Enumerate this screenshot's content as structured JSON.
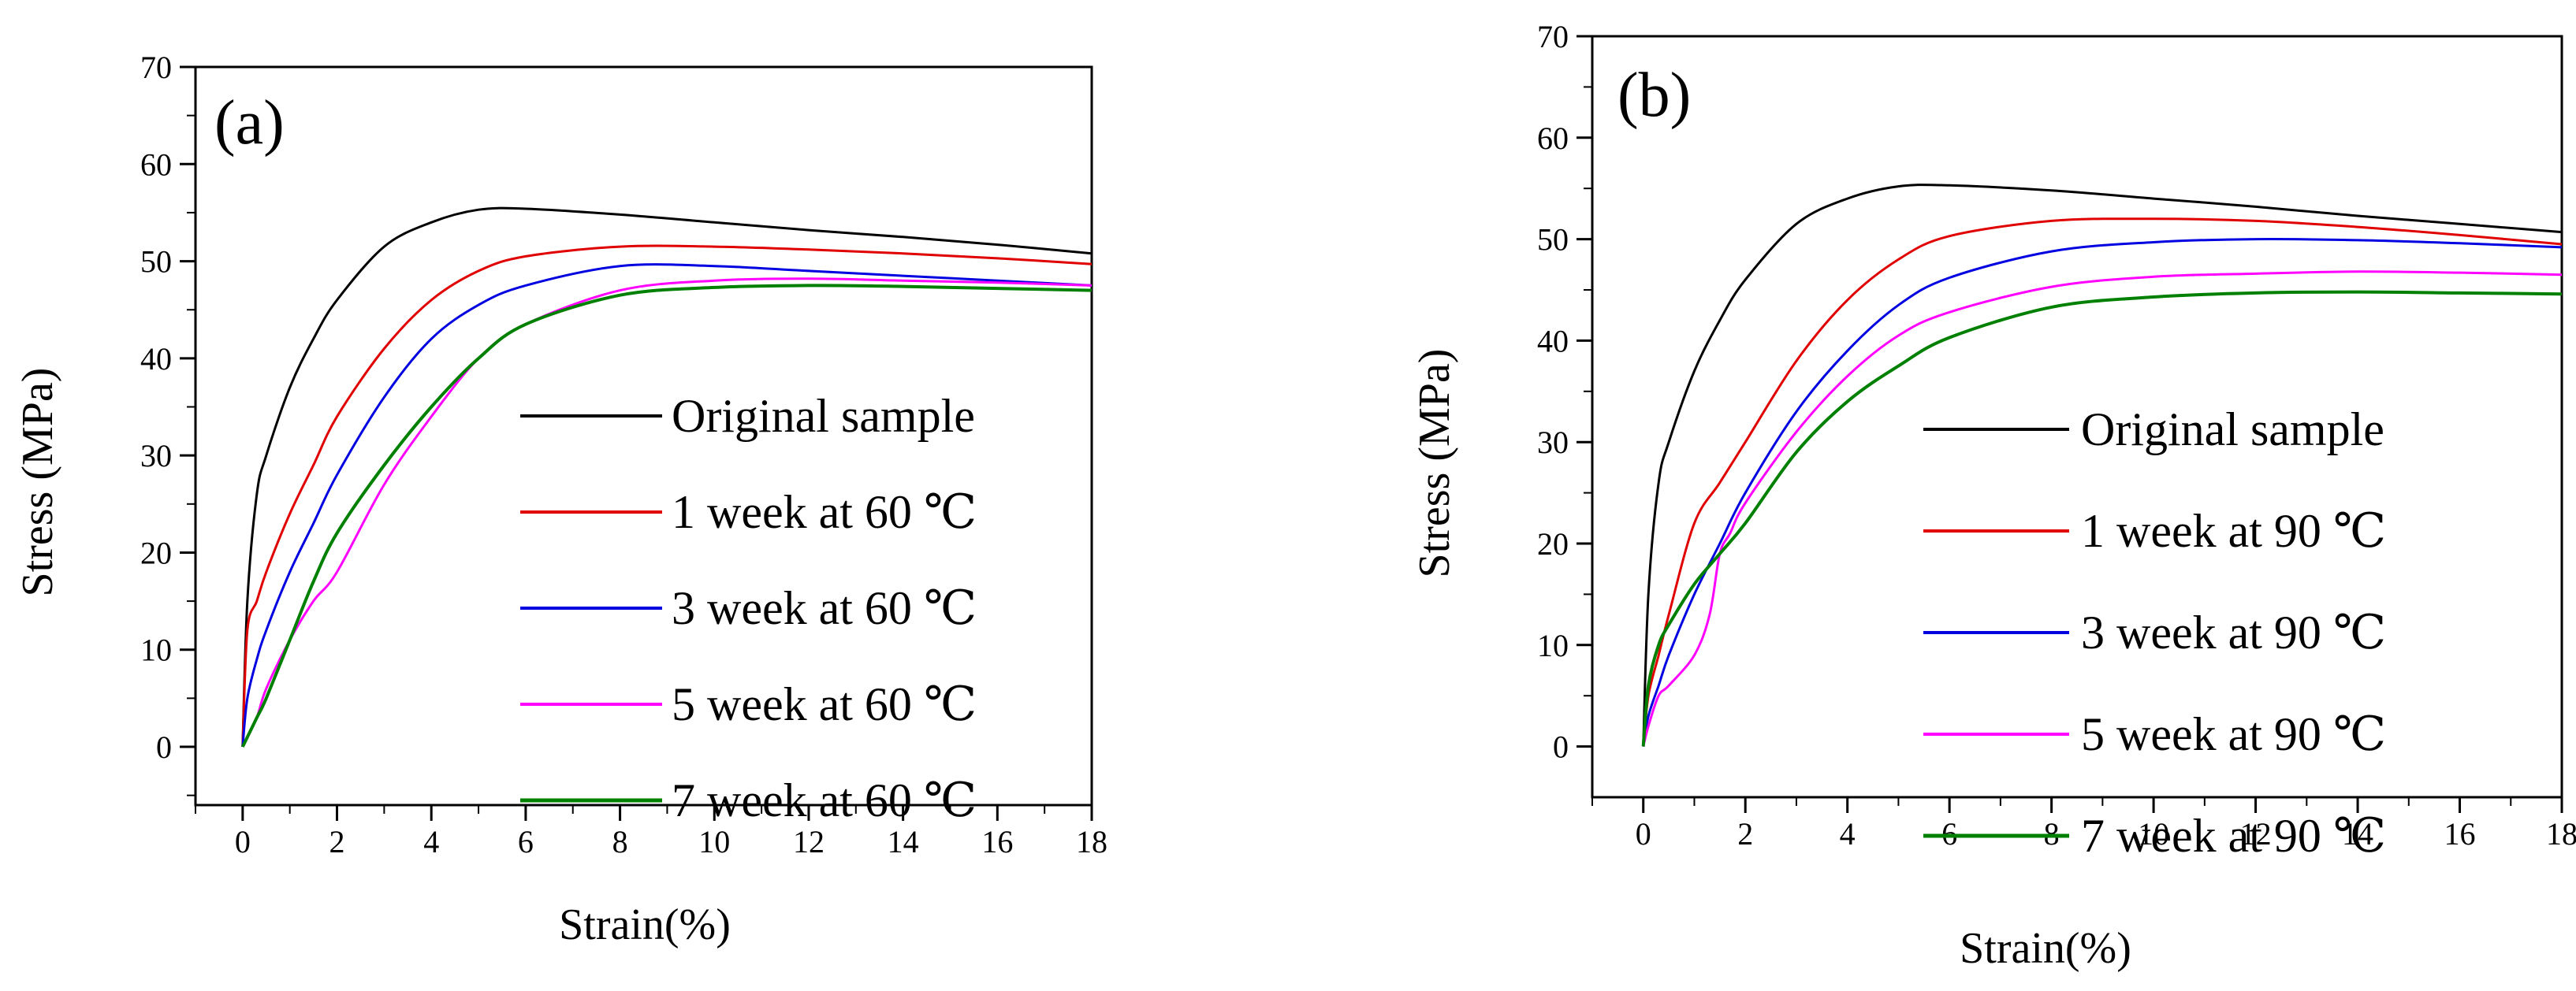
{
  "chart_data": [
    {
      "type": "line",
      "panel_label": "(a)",
      "xlabel": "Strain(%)",
      "ylabel": "Stress (MPa)",
      "xlim": [
        -1,
        18
      ],
      "ylim": [
        -6,
        70
      ],
      "xticks": [
        "0",
        "2",
        "4",
        "6",
        "8",
        "10",
        "12",
        "14",
        "16",
        "18"
      ],
      "yticks": [
        "0",
        "10",
        "20",
        "30",
        "40",
        "50",
        "60",
        "70"
      ],
      "legend_position": "center-right",
      "series": [
        {
          "name": "Original sample",
          "color": "#000000",
          "x": [
            0,
            0.1,
            0.3,
            0.5,
            1,
            1.5,
            2,
            3,
            4,
            5,
            6,
            8,
            10,
            12,
            14,
            16,
            18
          ],
          "y": [
            0,
            15,
            26,
            30,
            37,
            42,
            46,
            51.5,
            54,
            55.3,
            55.4,
            54.8,
            54,
            53.2,
            52.5,
            51.7,
            50.8
          ]
        },
        {
          "name": "1 week at 60 ℃",
          "color": "#e00000",
          "x": [
            0,
            0.1,
            0.3,
            0.5,
            1,
            1.5,
            2,
            3,
            4,
            5,
            6,
            8,
            10,
            12,
            14,
            16,
            18
          ],
          "y": [
            0,
            12,
            15,
            18,
            24,
            29,
            34,
            41,
            46,
            49,
            50.5,
            51.5,
            51.5,
            51.2,
            50.8,
            50.3,
            49.7
          ]
        },
        {
          "name": "3 week at 60 ℃",
          "color": "#0000e0",
          "x": [
            0,
            0.1,
            0.3,
            0.5,
            1,
            1.5,
            2,
            3,
            4,
            5,
            6,
            8,
            10,
            12,
            14,
            16,
            18
          ],
          "y": [
            0,
            5,
            9,
            12,
            18,
            23,
            28,
            36,
            42,
            45.5,
            47.5,
            49.5,
            49.5,
            49,
            48.5,
            48,
            47.5
          ]
        },
        {
          "name": "5 week at 60 ℃",
          "color": "#ff00ff",
          "x": [
            0,
            0.1,
            0.3,
            0.5,
            1,
            1.5,
            2,
            3,
            4,
            5,
            6,
            8,
            10,
            12,
            14,
            16,
            18
          ],
          "y": [
            0,
            1,
            3,
            6,
            11,
            15,
            18,
            27,
            34,
            40,
            43.5,
            47,
            48,
            48.2,
            48,
            47.8,
            47.5
          ]
        },
        {
          "name": "7 week at 60 ℃",
          "color": "#008000",
          "x": [
            0,
            0.1,
            0.3,
            0.5,
            1,
            1.5,
            2,
            3,
            4,
            5,
            6,
            8,
            10,
            12,
            14,
            16,
            18
          ],
          "y": [
            0,
            1,
            3,
            5,
            11,
            17,
            22,
            29,
            35,
            40,
            43.5,
            46.5,
            47.3,
            47.5,
            47.4,
            47.2,
            47
          ]
        }
      ]
    },
    {
      "type": "line",
      "panel_label": "(b)",
      "xlabel": "Strain(%)",
      "ylabel": "Stress (MPa)",
      "xlim": [
        -1,
        18
      ],
      "ylim": [
        -5,
        70
      ],
      "xticks": [
        "0",
        "2",
        "4",
        "6",
        "8",
        "10",
        "12",
        "14",
        "16",
        "18"
      ],
      "yticks": [
        "0",
        "10",
        "20",
        "30",
        "40",
        "50",
        "60",
        "70"
      ],
      "legend_position": "center-right",
      "series": [
        {
          "name": "Original sample",
          "color": "#000000",
          "x": [
            0,
            0.1,
            0.3,
            0.5,
            1,
            1.5,
            2,
            3,
            4,
            5,
            6,
            8,
            10,
            12,
            14,
            16,
            18
          ],
          "y": [
            0,
            15,
            26,
            30,
            37,
            42,
            46,
            51.5,
            54,
            55.2,
            55.3,
            54.8,
            54,
            53.2,
            52.3,
            51.5,
            50.7
          ]
        },
        {
          "name": "1 week at 90 ℃",
          "color": "#e00000",
          "x": [
            0,
            0.1,
            0.3,
            0.5,
            1,
            1.5,
            2,
            3,
            4,
            5,
            6,
            8,
            10,
            12,
            14,
            16,
            18
          ],
          "y": [
            0,
            5,
            9,
            13,
            22,
            26,
            30,
            38,
            44,
            48,
            50.3,
            51.8,
            52,
            51.8,
            51.2,
            50.4,
            49.5
          ]
        },
        {
          "name": "3 week at 90 ℃",
          "color": "#0000e0",
          "x": [
            0,
            0.1,
            0.3,
            0.5,
            1,
            1.5,
            2,
            3,
            4,
            5,
            6,
            8,
            10,
            12,
            14,
            16,
            18
          ],
          "y": [
            0,
            3,
            6,
            9,
            15,
            20,
            25,
            33,
            39,
            43.5,
            46.2,
            48.8,
            49.7,
            50,
            49.9,
            49.6,
            49.2
          ]
        },
        {
          "name": "5 week at 90 ℃",
          "color": "#ff00ff",
          "x": [
            0,
            0.1,
            0.3,
            0.5,
            1,
            1.3,
            1.5,
            1.7,
            2,
            3,
            4,
            5,
            6,
            8,
            10,
            12,
            14,
            16,
            18
          ],
          "y": [
            0,
            2,
            5,
            6,
            9,
            13,
            19,
            21,
            24,
            31,
            36.5,
            40.5,
            42.8,
            45.3,
            46.3,
            46.6,
            46.8,
            46.7,
            46.5
          ]
        },
        {
          "name": "7 week at 90 ℃",
          "color": "#008000",
          "x": [
            0,
            0.1,
            0.3,
            0.5,
            1,
            1.5,
            2,
            3,
            4,
            5,
            6,
            8,
            10,
            12,
            14,
            16,
            18
          ],
          "y": [
            0,
            6,
            10,
            12,
            16,
            19,
            22,
            29,
            34,
            37.5,
            40.3,
            43.3,
            44.3,
            44.7,
            44.8,
            44.7,
            44.6
          ]
        }
      ]
    }
  ]
}
